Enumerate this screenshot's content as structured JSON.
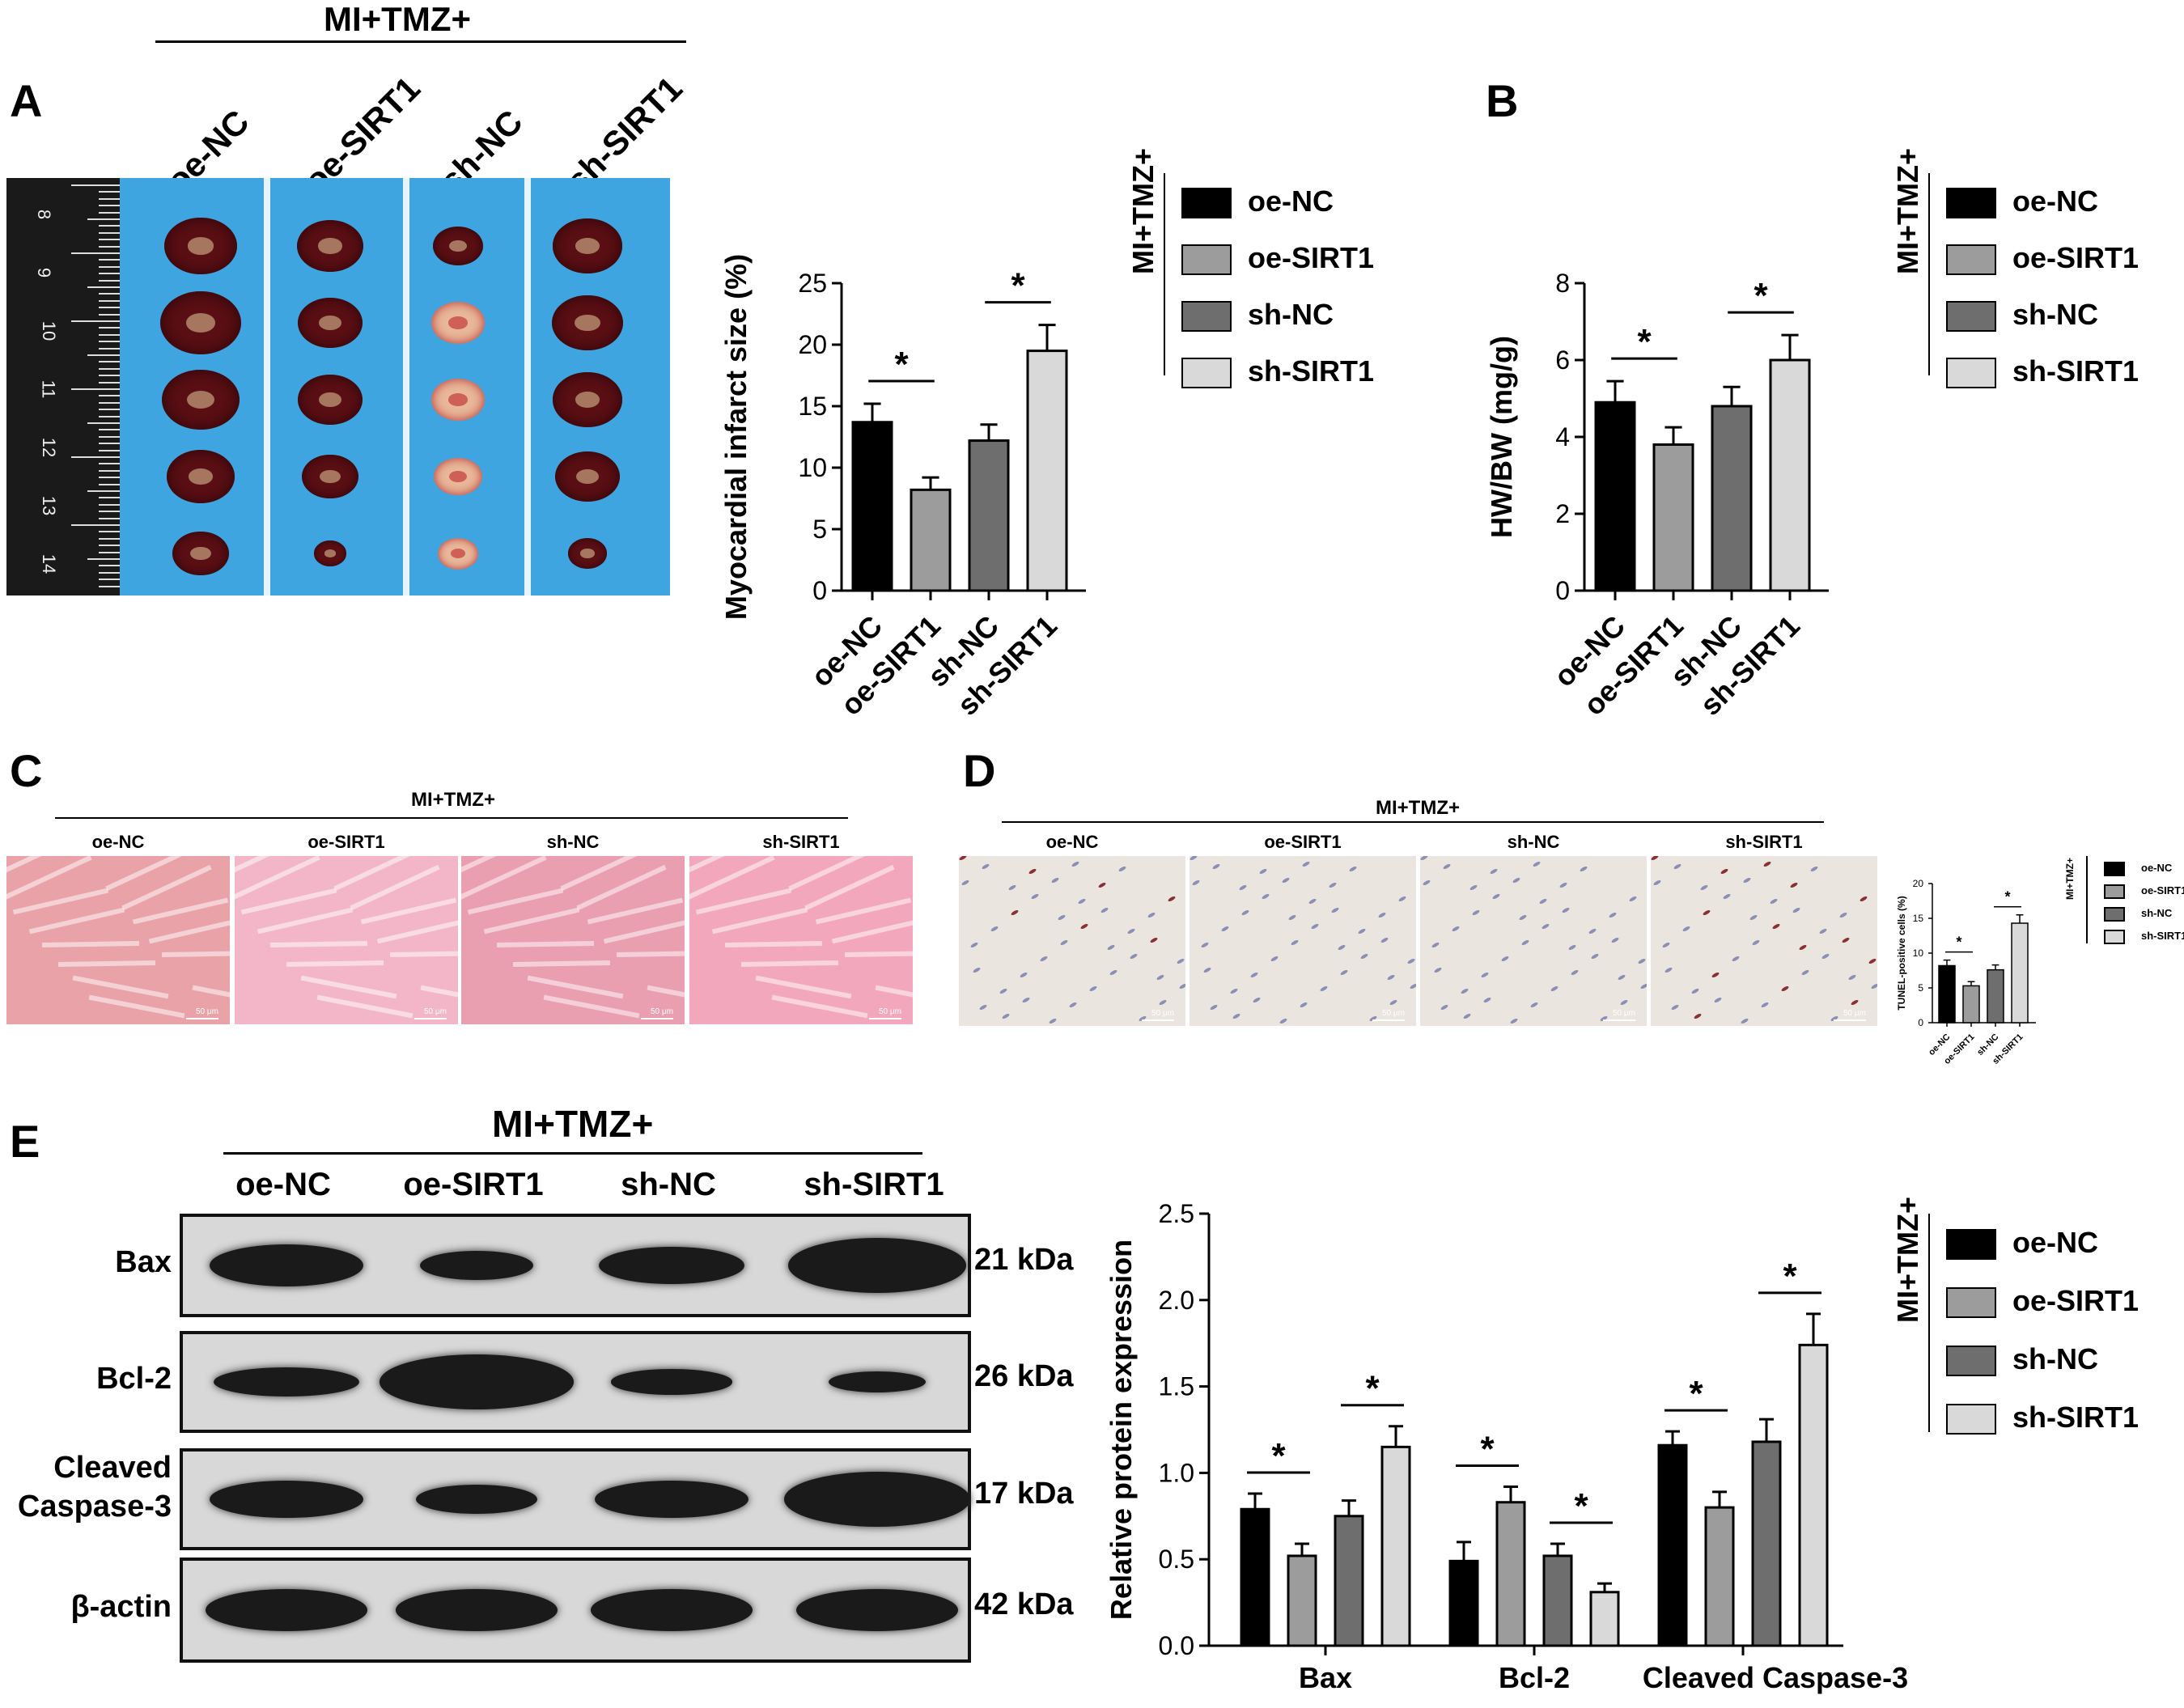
{
  "panels": {
    "A": "A",
    "B": "B",
    "C": "C",
    "D": "D",
    "E": "E"
  },
  "group_label": "MI+TMZ+",
  "groups": [
    "oe-NC",
    "oe-SIRT1",
    "sh-NC",
    "sh-SIRT1"
  ],
  "legend": {
    "title": "MI+TMZ+",
    "entries": [
      {
        "name": "oe-NC",
        "color": "#000000"
      },
      {
        "name": "oe-SIRT1",
        "color": "#9c9c9c"
      },
      {
        "name": "sh-NC",
        "color": "#6e6e6e"
      },
      {
        "name": "sh-SIRT1",
        "color": "#d9d9d9"
      }
    ]
  },
  "photo_scale": [
    "8",
    "9",
    "10",
    "11",
    "12",
    "13",
    "14"
  ],
  "micrograph_scale": "50 μm",
  "blot": {
    "rows": [
      {
        "name": "Bax",
        "kda": "21 kDa"
      },
      {
        "name": "Bcl-2",
        "kda": "26 kDa"
      },
      {
        "name": "Cleaved Caspase-3",
        "kda": "17 kDa"
      },
      {
        "name": "β-actin",
        "kda": "42 kDa"
      }
    ]
  },
  "chart_data": [
    {
      "id": "A-infarct",
      "type": "bar",
      "categories": [
        "oe-NC",
        "oe-SIRT1",
        "sh-NC",
        "sh-SIRT1"
      ],
      "values": [
        13.7,
        8.2,
        12.2,
        19.5
      ],
      "errors": [
        1.5,
        1.0,
        1.3,
        2.1
      ],
      "ylabel": "Myocardial infarct size (%)",
      "ylim": [
        0,
        25
      ],
      "yticks": [
        0,
        5,
        10,
        15,
        20,
        25
      ],
      "significance": [
        {
          "pair": [
            0,
            1
          ],
          "label": "*"
        },
        {
          "pair": [
            2,
            3
          ],
          "label": "*"
        }
      ]
    },
    {
      "id": "B-hwbw",
      "type": "bar",
      "categories": [
        "oe-NC",
        "oe-SIRT1",
        "sh-NC",
        "sh-SIRT1"
      ],
      "values": [
        4.9,
        3.8,
        4.8,
        6.0
      ],
      "errors": [
        0.55,
        0.45,
        0.5,
        0.65
      ],
      "ylabel": "HW/BW (mg/g)",
      "ylim": [
        0,
        8
      ],
      "yticks": [
        0,
        2,
        4,
        6,
        8
      ],
      "significance": [
        {
          "pair": [
            0,
            1
          ],
          "label": "*"
        },
        {
          "pair": [
            2,
            3
          ],
          "label": "*"
        }
      ]
    },
    {
      "id": "D-tunel",
      "type": "bar",
      "categories": [
        "oe-NC",
        "oe-SIRT1",
        "sh-NC",
        "sh-SIRT1"
      ],
      "values": [
        8.2,
        5.3,
        7.6,
        14.3
      ],
      "errors": [
        0.8,
        0.6,
        0.7,
        1.2
      ],
      "ylabel": "TUNEL-positive cells (%)",
      "ylim": [
        0,
        20
      ],
      "yticks": [
        0,
        5,
        10,
        15,
        20
      ],
      "significance": [
        {
          "pair": [
            0,
            1
          ],
          "label": "*"
        },
        {
          "pair": [
            2,
            3
          ],
          "label": "*"
        }
      ]
    },
    {
      "id": "E-protein",
      "type": "bar",
      "categories": [
        "Bax",
        "Bcl-2",
        "Cleaved Caspase-3"
      ],
      "series": [
        {
          "name": "oe-NC",
          "values": [
            0.79,
            0.49,
            1.16
          ],
          "errors": [
            0.09,
            0.11,
            0.08
          ]
        },
        {
          "name": "oe-SIRT1",
          "values": [
            0.52,
            0.83,
            0.8
          ],
          "errors": [
            0.07,
            0.09,
            0.09
          ]
        },
        {
          "name": "sh-NC",
          "values": [
            0.75,
            0.52,
            1.18
          ],
          "errors": [
            0.09,
            0.07,
            0.13
          ]
        },
        {
          "name": "sh-SIRT1",
          "values": [
            1.15,
            0.31,
            1.74
          ],
          "errors": [
            0.12,
            0.05,
            0.18
          ]
        }
      ],
      "ylabel": "Relative protein expression",
      "ylim": [
        0,
        2.5
      ],
      "yticks": [
        "0.0",
        "0.5",
        "1.0",
        "1.5",
        "2.0",
        "2.5"
      ],
      "significance": [
        {
          "cat": 0,
          "pair": [
            0,
            1
          ],
          "label": "*"
        },
        {
          "cat": 0,
          "pair": [
            2,
            3
          ],
          "label": "*"
        },
        {
          "cat": 1,
          "pair": [
            0,
            1
          ],
          "label": "*"
        },
        {
          "cat": 1,
          "pair": [
            2,
            3
          ],
          "label": "*"
        },
        {
          "cat": 2,
          "pair": [
            0,
            1
          ],
          "label": "*"
        },
        {
          "cat": 2,
          "pair": [
            2,
            3
          ],
          "label": "*"
        }
      ]
    }
  ]
}
